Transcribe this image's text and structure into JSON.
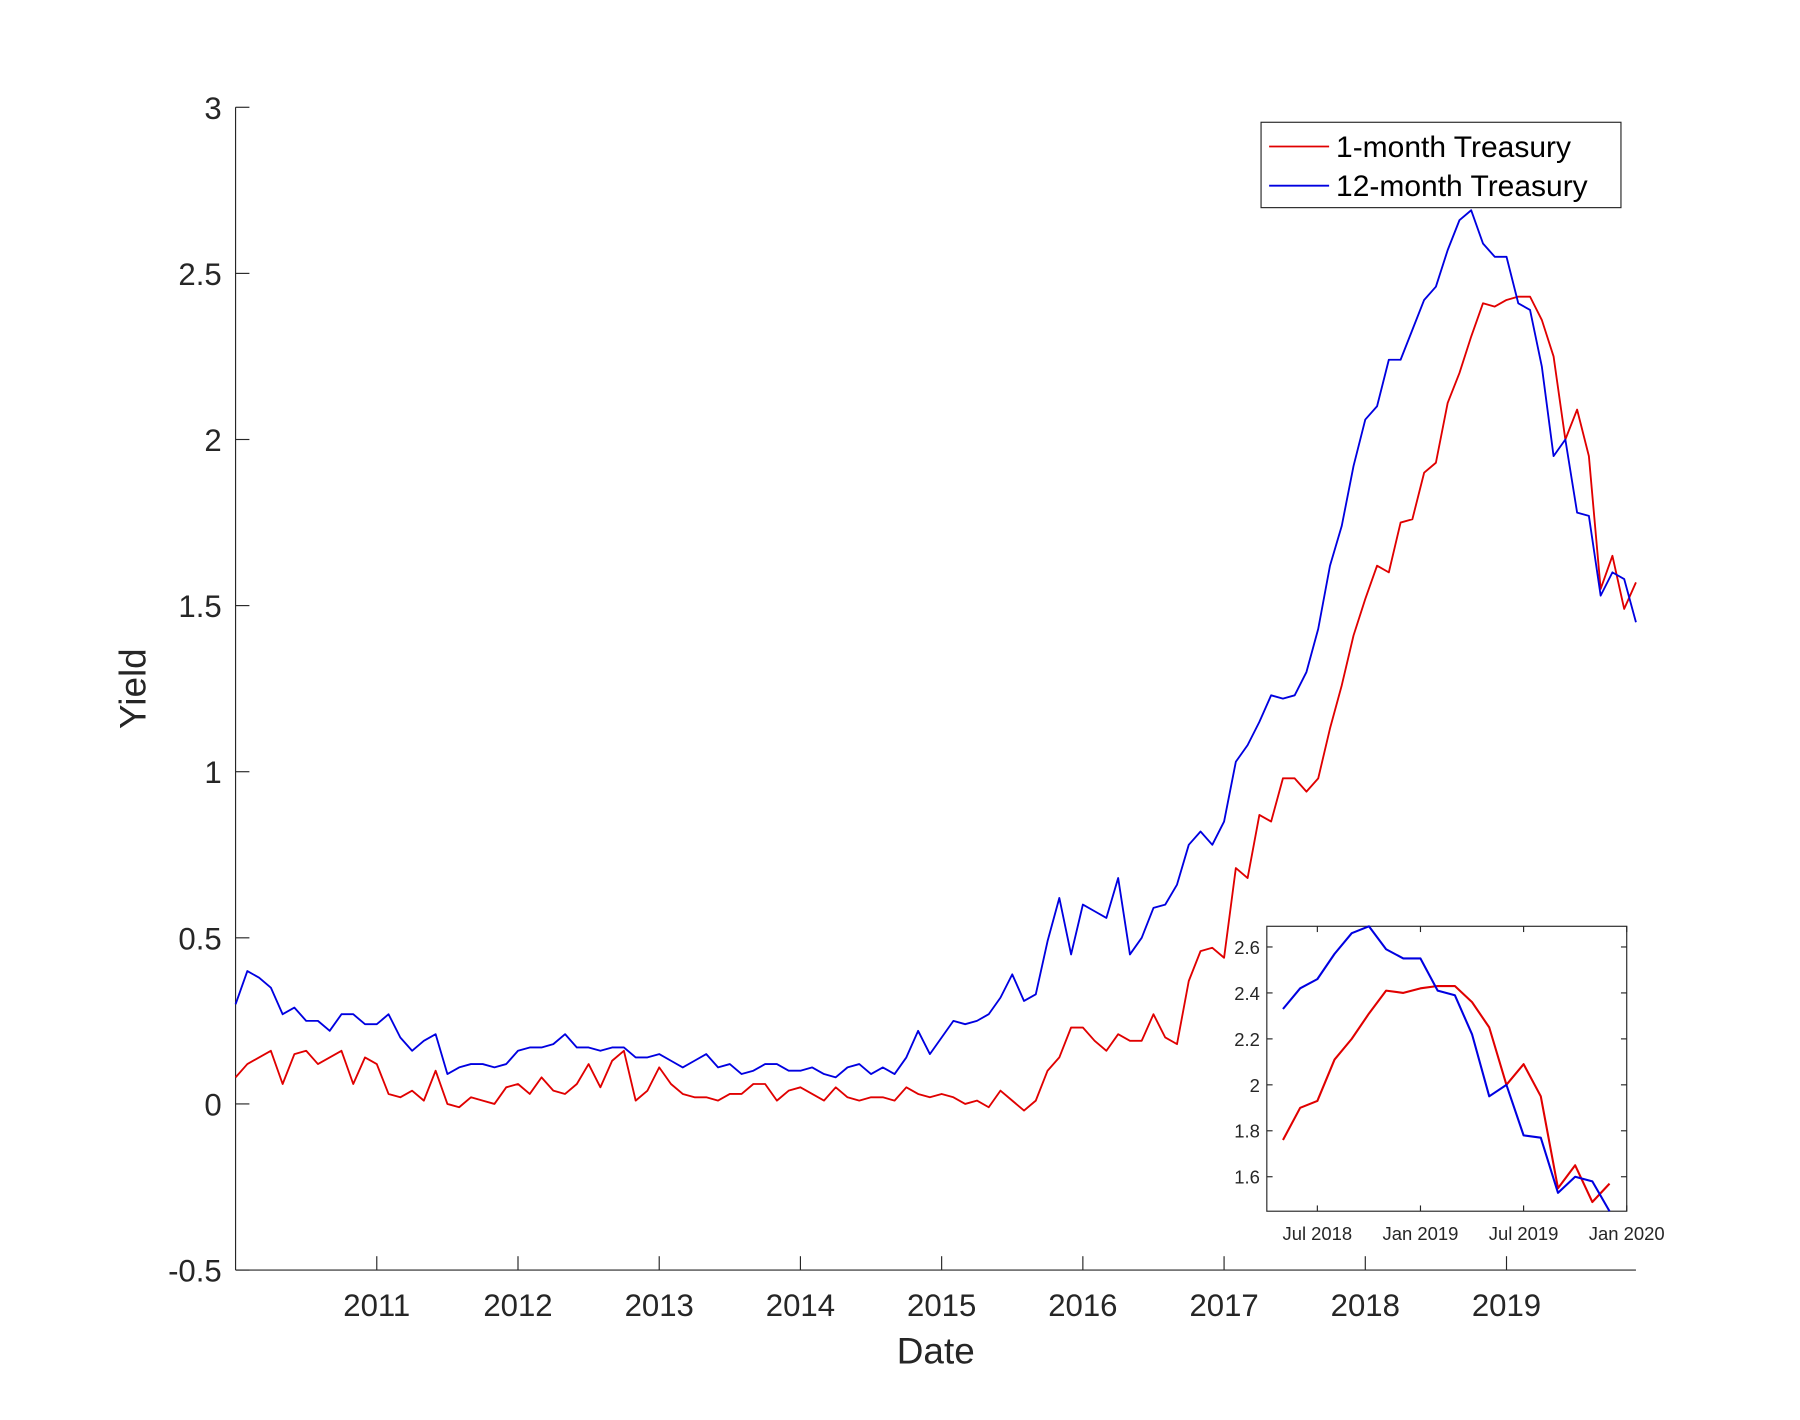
{
  "chart_data": [
    {
      "type": "line",
      "xlabel": "Date",
      "ylabel": "Yield",
      "ylim": [
        -0.5,
        3
      ],
      "xlim": [
        "2010-01",
        "2019-12"
      ],
      "yticks": [
        "-0.5",
        "0",
        "0.5",
        "1",
        "1.5",
        "2",
        "2.5",
        "3"
      ],
      "xticks": [
        "2011",
        "2012",
        "2013",
        "2014",
        "2015",
        "2016",
        "2017",
        "2018",
        "2019"
      ],
      "grid": false,
      "legend_position": "top-right",
      "x": [
        "2010-01",
        "2010-02",
        "2010-03",
        "2010-04",
        "2010-05",
        "2010-06",
        "2010-07",
        "2010-08",
        "2010-09",
        "2010-10",
        "2010-11",
        "2010-12",
        "2011-01",
        "2011-02",
        "2011-03",
        "2011-04",
        "2011-05",
        "2011-06",
        "2011-07",
        "2011-08",
        "2011-09",
        "2011-10",
        "2011-11",
        "2011-12",
        "2012-01",
        "2012-02",
        "2012-03",
        "2012-04",
        "2012-05",
        "2012-06",
        "2012-07",
        "2012-08",
        "2012-09",
        "2012-10",
        "2012-11",
        "2012-12",
        "2013-01",
        "2013-02",
        "2013-03",
        "2013-04",
        "2013-05",
        "2013-06",
        "2013-07",
        "2013-08",
        "2013-09",
        "2013-10",
        "2013-11",
        "2013-12",
        "2014-01",
        "2014-02",
        "2014-03",
        "2014-04",
        "2014-05",
        "2014-06",
        "2014-07",
        "2014-08",
        "2014-09",
        "2014-10",
        "2014-11",
        "2014-12",
        "2015-01",
        "2015-02",
        "2015-03",
        "2015-04",
        "2015-05",
        "2015-06",
        "2015-07",
        "2015-08",
        "2015-09",
        "2015-10",
        "2015-11",
        "2015-12",
        "2016-01",
        "2016-02",
        "2016-03",
        "2016-04",
        "2016-05",
        "2016-06",
        "2016-07",
        "2016-08",
        "2016-09",
        "2016-10",
        "2016-11",
        "2016-12",
        "2017-01",
        "2017-02",
        "2017-03",
        "2017-04",
        "2017-05",
        "2017-06",
        "2017-07",
        "2017-08",
        "2017-09",
        "2017-10",
        "2017-11",
        "2017-12",
        "2018-01",
        "2018-02",
        "2018-03",
        "2018-04",
        "2018-05",
        "2018-06",
        "2018-07",
        "2018-08",
        "2018-09",
        "2018-10",
        "2018-11",
        "2018-12",
        "2019-01",
        "2019-02",
        "2019-03",
        "2019-04",
        "2019-05",
        "2019-06",
        "2019-07",
        "2019-08",
        "2019-09",
        "2019-10",
        "2019-11",
        "2019-12"
      ],
      "series": [
        {
          "name": "1-month Treasury",
          "color": "#e00000",
          "values": [
            0.08,
            0.12,
            0.14,
            0.16,
            0.06,
            0.15,
            0.16,
            0.12,
            0.14,
            0.16,
            0.06,
            0.14,
            0.12,
            0.03,
            0.02,
            0.04,
            0.01,
            0.1,
            0.0,
            -0.01,
            0.02,
            0.01,
            0.0,
            0.05,
            0.06,
            0.03,
            0.08,
            0.04,
            0.03,
            0.06,
            0.12,
            0.05,
            0.13,
            0.16,
            0.01,
            0.04,
            0.11,
            0.06,
            0.03,
            0.02,
            0.02,
            0.01,
            0.03,
            0.03,
            0.06,
            0.06,
            0.01,
            0.04,
            0.05,
            0.03,
            0.01,
            0.05,
            0.02,
            0.01,
            0.02,
            0.02,
            0.01,
            0.05,
            0.03,
            0.02,
            0.03,
            0.02,
            0.0,
            0.01,
            -0.01,
            0.04,
            0.01,
            -0.02,
            0.01,
            0.1,
            0.14,
            0.23,
            0.23,
            0.19,
            0.16,
            0.21,
            0.19,
            0.19,
            0.27,
            0.2,
            0.18,
            0.37,
            0.46,
            0.47,
            0.44,
            0.71,
            0.68,
            0.87,
            0.85,
            0.98,
            0.98,
            0.94,
            0.98,
            1.13,
            1.26,
            1.41,
            1.52,
            1.62,
            1.6,
            1.75,
            1.76,
            1.9,
            1.93,
            2.11,
            2.2,
            2.31,
            2.41,
            2.4,
            2.42,
            2.43,
            2.43,
            2.36,
            2.25,
            2.0,
            2.09,
            1.95,
            1.55,
            1.65,
            1.49,
            1.57
          ]
        },
        {
          "name": "12-month Treasury",
          "color": "#0000e0",
          "values": [
            0.3,
            0.4,
            0.38,
            0.35,
            0.27,
            0.29,
            0.25,
            0.25,
            0.22,
            0.27,
            0.27,
            0.24,
            0.24,
            0.27,
            0.2,
            0.16,
            0.19,
            0.21,
            0.09,
            0.11,
            0.12,
            0.12,
            0.11,
            0.12,
            0.16,
            0.17,
            0.17,
            0.18,
            0.21,
            0.17,
            0.17,
            0.16,
            0.17,
            0.17,
            0.14,
            0.14,
            0.15,
            0.13,
            0.11,
            0.13,
            0.15,
            0.11,
            0.12,
            0.09,
            0.1,
            0.12,
            0.12,
            0.1,
            0.1,
            0.11,
            0.09,
            0.08,
            0.11,
            0.12,
            0.09,
            0.11,
            0.09,
            0.14,
            0.22,
            0.15,
            0.2,
            0.25,
            0.24,
            0.25,
            0.27,
            0.32,
            0.39,
            0.31,
            0.33,
            0.49,
            0.62,
            0.45,
            0.6,
            0.58,
            0.56,
            0.68,
            0.45,
            0.5,
            0.59,
            0.6,
            0.66,
            0.78,
            0.82,
            0.78,
            0.85,
            1.03,
            1.08,
            1.15,
            1.23,
            1.22,
            1.23,
            1.3,
            1.43,
            1.62,
            1.74,
            1.92,
            2.06,
            2.1,
            2.24,
            2.24,
            2.33,
            2.42,
            2.46,
            2.57,
            2.66,
            2.69,
            2.59,
            2.55,
            2.55,
            2.41,
            2.39,
            2.22,
            1.95,
            2.0,
            1.78,
            1.77,
            1.53,
            1.6,
            1.58,
            1.45
          ]
        }
      ]
    },
    {
      "type": "line",
      "inset": true,
      "xlim": [
        "2018-05",
        "2020-01"
      ],
      "ylim": [
        1.45,
        2.69
      ],
      "yticks": [
        "1.6",
        "1.8",
        "2",
        "2.2",
        "2.4",
        "2.6"
      ],
      "xticks": [
        "Jul 2018",
        "Jan 2019",
        "Jul 2019",
        "Jan 2020"
      ],
      "x": [
        "2018-05",
        "2018-06",
        "2018-07",
        "2018-08",
        "2018-09",
        "2018-10",
        "2018-11",
        "2018-12",
        "2019-01",
        "2019-02",
        "2019-03",
        "2019-04",
        "2019-05",
        "2019-06",
        "2019-07",
        "2019-08",
        "2019-09",
        "2019-10",
        "2019-11",
        "2019-12"
      ],
      "series": [
        {
          "name": "1-month Treasury",
          "color": "#e00000",
          "values": [
            1.76,
            1.9,
            1.93,
            2.11,
            2.2,
            2.31,
            2.41,
            2.4,
            2.42,
            2.43,
            2.43,
            2.36,
            2.25,
            2.0,
            2.09,
            1.95,
            1.55,
            1.65,
            1.49,
            1.57
          ]
        },
        {
          "name": "12-month Treasury",
          "color": "#0000e0",
          "values": [
            2.33,
            2.42,
            2.46,
            2.57,
            2.66,
            2.69,
            2.59,
            2.55,
            2.55,
            2.41,
            2.39,
            2.22,
            1.95,
            2.0,
            1.78,
            1.77,
            1.53,
            1.6,
            1.58,
            1.45
          ]
        }
      ]
    }
  ]
}
